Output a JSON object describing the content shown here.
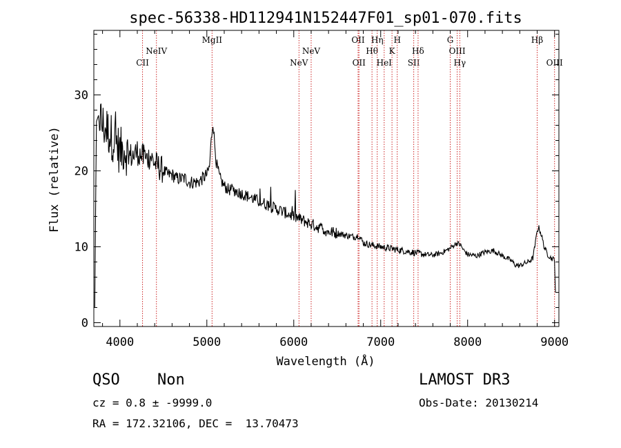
{
  "chart_data": {
    "type": "line",
    "title": "spec-56338-HD112941N152447F01_sp01-070.fits",
    "xlabel": "Wavelength (Å)",
    "ylabel": "Flux (relative)",
    "xlim": [
      3700,
      9050
    ],
    "ylim": [
      -0.5,
      38.5
    ],
    "xticks": [
      4000,
      5000,
      6000,
      7000,
      8000,
      9000
    ],
    "yticks": [
      0,
      10,
      20,
      30
    ],
    "xtick_labels": [
      "4000",
      "5000",
      "6000",
      "7000",
      "8000",
      "9000"
    ],
    "ytick_labels": [
      "0",
      "10",
      "20",
      "30"
    ],
    "series": [
      {
        "name": "spectrum",
        "color": "#000000",
        "x": [
          3710,
          3730,
          3760,
          3800,
          3850,
          3900,
          3950,
          4000,
          4050,
          4100,
          4150,
          4200,
          4250,
          4300,
          4350,
          4400,
          4450,
          4500,
          4550,
          4600,
          4650,
          4700,
          4750,
          4800,
          4850,
          4900,
          4950,
          5000,
          5030,
          5050,
          5070,
          5090,
          5110,
          5150,
          5200,
          5250,
          5300,
          5400,
          5500,
          5600,
          5700,
          5800,
          5900,
          6000,
          6100,
          6200,
          6300,
          6400,
          6500,
          6600,
          6700,
          6750,
          6800,
          6900,
          7000,
          7100,
          7200,
          7300,
          7400,
          7500,
          7600,
          7700,
          7800,
          7850,
          7880,
          7920,
          7950,
          8000,
          8100,
          8200,
          8300,
          8400,
          8500,
          8550,
          8600,
          8650,
          8700,
          8750,
          8780,
          8800,
          8820,
          8850,
          8880,
          8920,
          8960,
          9000,
          9010
        ],
        "y": [
          2.0,
          26.5,
          27.5,
          26.0,
          25.5,
          24.5,
          24.0,
          22.5,
          23.0,
          22.0,
          22.0,
          22.5,
          22.0,
          21.5,
          22.0,
          21.0,
          20.5,
          20.0,
          19.5,
          19.5,
          19.0,
          19.0,
          19.0,
          18.5,
          18.5,
          18.5,
          19.0,
          19.5,
          20.5,
          24.0,
          26.5,
          23.5,
          21.0,
          19.0,
          18.0,
          17.5,
          17.5,
          17.0,
          16.5,
          16.0,
          15.5,
          15.0,
          14.5,
          14.0,
          13.5,
          13.0,
          12.5,
          12.0,
          11.8,
          11.5,
          11.3,
          11.5,
          10.5,
          10.2,
          10.0,
          9.8,
          9.6,
          9.4,
          9.2,
          9.0,
          8.9,
          9.2,
          9.8,
          10.3,
          10.5,
          10.2,
          9.6,
          9.0,
          8.8,
          9.3,
          9.5,
          8.8,
          8.2,
          7.6,
          7.5,
          7.8,
          8.0,
          8.5,
          10.5,
          12.2,
          12.5,
          11.5,
          10.0,
          9.0,
          8.5,
          8.3,
          4.0
        ]
      }
    ],
    "line_markers": [
      {
        "label": "CII",
        "x": 4260,
        "row": 3
      },
      {
        "label": "NeIV",
        "x": 4420,
        "row": 2
      },
      {
        "label": "MgII",
        "x": 5060,
        "row": 1
      },
      {
        "label": "NeV",
        "x": 6060,
        "row": 3
      },
      {
        "label": "NeV",
        "x": 6200,
        "row": 2
      },
      {
        "label": "OII",
        "x": 6740,
        "row": 1
      },
      {
        "label": "OII",
        "x": 6750,
        "row": 3
      },
      {
        "label": "Hθ",
        "x": 6900,
        "row": 2
      },
      {
        "label": "Hη",
        "x": 6960,
        "row": 1
      },
      {
        "label": "HeI",
        "x": 7040,
        "row": 3
      },
      {
        "label": "K",
        "x": 7130,
        "row": 2
      },
      {
        "label": "H",
        "x": 7190,
        "row": 1
      },
      {
        "label": "SII",
        "x": 7380,
        "row": 3
      },
      {
        "label": "Hδ",
        "x": 7430,
        "row": 2
      },
      {
        "label": "G",
        "x": 7800,
        "row": 1
      },
      {
        "label": "OIII",
        "x": 7880,
        "row": 2
      },
      {
        "label": "Hγ",
        "x": 7910,
        "row": 3
      },
      {
        "label": "Hβ",
        "x": 8800,
        "row": 1
      },
      {
        "label": "OIII",
        "x": 9000,
        "row": 3
      }
    ],
    "marker_color": "#cc2222"
  },
  "footer": {
    "class_label": "QSO",
    "subclass_label": "Non",
    "survey_label": "LAMOST DR3",
    "cz_text": "cz = 0.8 ± -9999.0",
    "obs_date_text": "Obs-Date: 20130214",
    "radec_text": "RA = 172.32106, DEC =  13.70473"
  }
}
